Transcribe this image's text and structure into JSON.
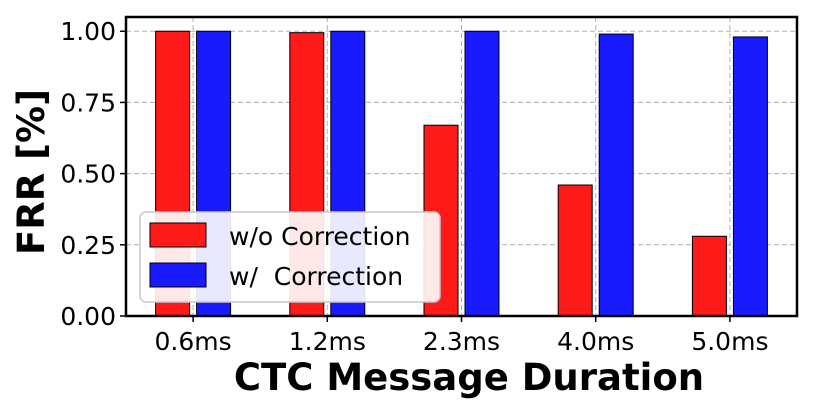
{
  "chart_data": {
    "type": "bar",
    "categories": [
      "0.6ms",
      "1.2ms",
      "2.3ms",
      "4.0ms",
      "5.0ms"
    ],
    "series": [
      {
        "name": "w/o Correction",
        "color": "#ff1a1a",
        "values": [
          1.0,
          0.995,
          0.67,
          0.46,
          0.28
        ]
      },
      {
        "name": "w/  Correction",
        "color": "#1a1aff",
        "values": [
          1.0,
          1.0,
          1.0,
          0.99,
          0.98
        ]
      }
    ],
    "xlabel": "CTC Message Duration",
    "ylabel": "FRR [%]",
    "ylim": [
      0,
      1.05
    ],
    "yticks": [
      "0.00",
      "0.25",
      "0.50",
      "0.75",
      "1.00"
    ],
    "grid": true,
    "legend_position": "lower-left"
  }
}
